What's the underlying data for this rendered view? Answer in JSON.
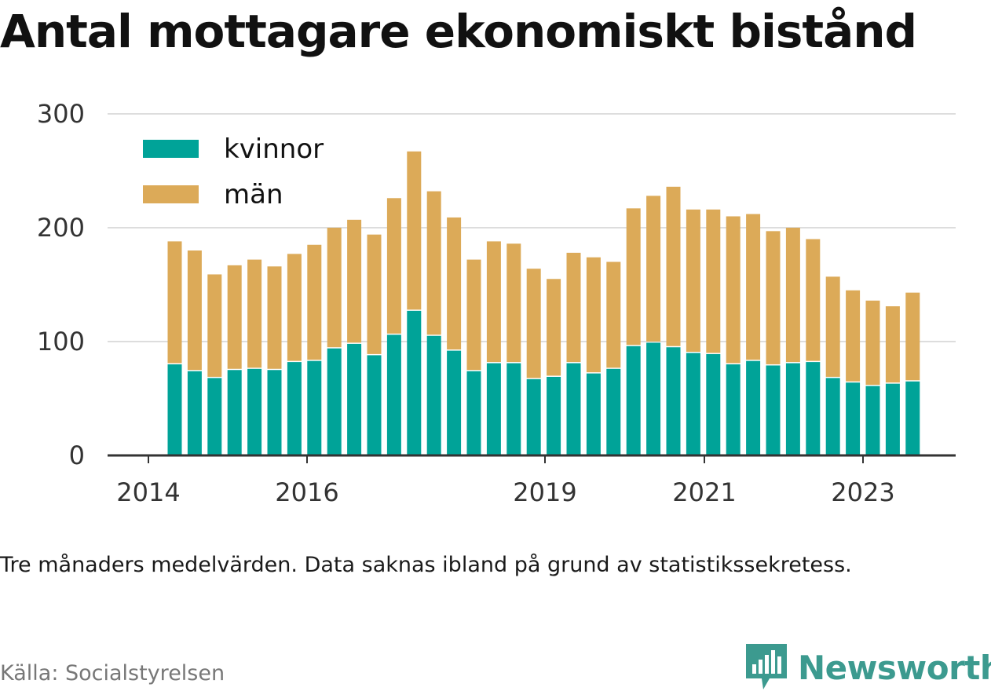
{
  "title": "Antal mottagare ekonomiskt bistånd",
  "note": "Tre månaders medelvärden. Data saknas ibland på grund av statistikssekretess.",
  "source": "Källa: Socialstyrelsen",
  "brand": "Newsworthy",
  "colors": {
    "kvinnor": "#00a398",
    "man": "#dcaa58",
    "grid": "#dddddd",
    "axis": "#333333",
    "brand": "#3c9a8f"
  },
  "chart_data": {
    "type": "bar",
    "stacked": true,
    "title": "Antal mottagare ekonomiskt bistånd",
    "xlabel": "",
    "ylabel": "",
    "ylim": [
      0,
      300
    ],
    "yticks": [
      "0",
      "100",
      "200",
      "300"
    ],
    "xticks": [
      "2014",
      "2016",
      "2019",
      "2021",
      "2023"
    ],
    "grid": true,
    "legend_position": "top-left",
    "series": [
      {
        "name": "kvinnor",
        "values": [
          80,
          74,
          68,
          75,
          76,
          75,
          82,
          83,
          94,
          98,
          88,
          106,
          127,
          105,
          92,
          74,
          81,
          81,
          67,
          69,
          81,
          72,
          76,
          96,
          99,
          95,
          90,
          89,
          80,
          83,
          79,
          81,
          82,
          68,
          64,
          61,
          63,
          65
        ]
      },
      {
        "name": "män",
        "values": [
          108,
          106,
          91,
          92,
          96,
          91,
          95,
          102,
          106,
          109,
          106,
          120,
          140,
          127,
          117,
          98,
          107,
          105,
          97,
          86,
          97,
          102,
          94,
          121,
          129,
          141,
          126,
          127,
          130,
          129,
          118,
          119,
          108,
          89,
          81,
          75,
          68,
          78
        ]
      }
    ]
  }
}
